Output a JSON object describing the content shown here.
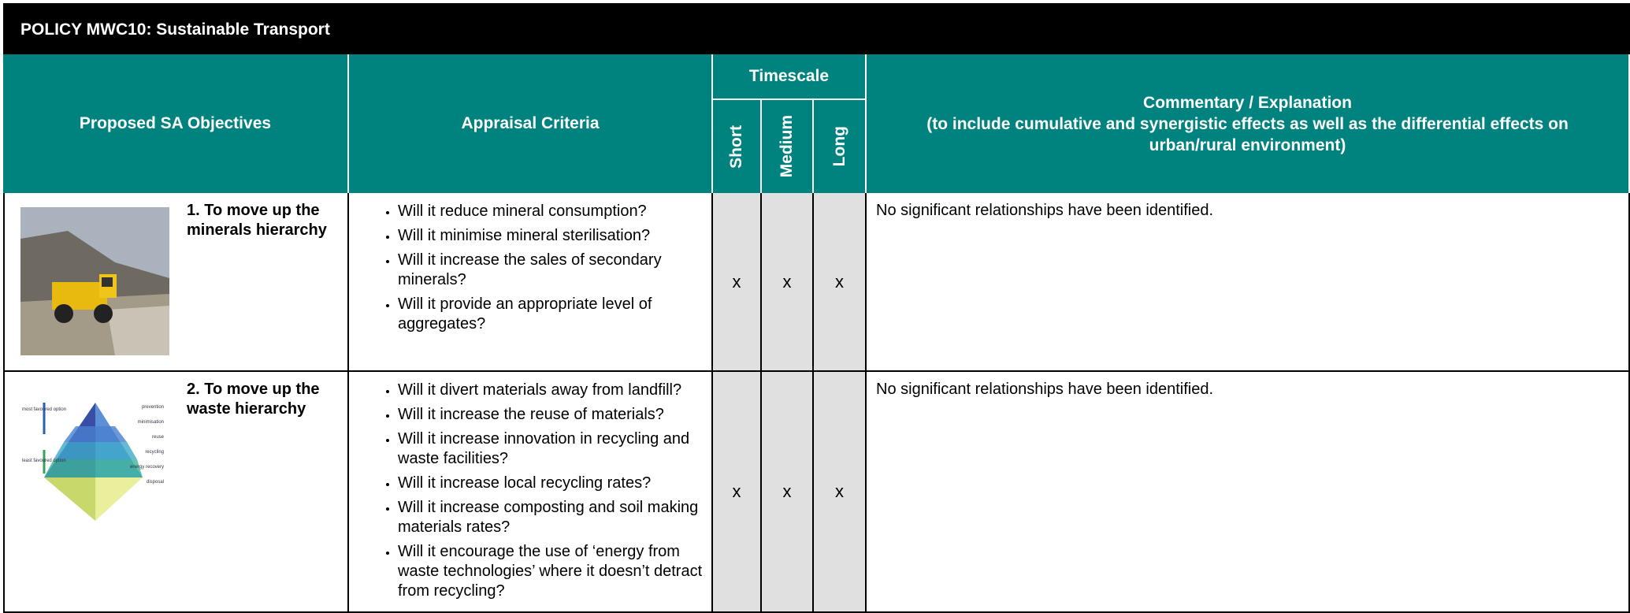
{
  "header": {
    "title": "POLICY MWC10: Sustainable Transport"
  },
  "table": {
    "columns": {
      "objectives": "Proposed SA Objectives",
      "criteria": "Appraisal Criteria",
      "timescale": "Timescale",
      "short": "Short",
      "medium": "Medium",
      "long": "Long",
      "commentary": "Commentary / Explanation",
      "commentary_note": "(to include cumulative and synergistic effects as well as the differential effects on urban/rural environment)"
    },
    "rows": [
      {
        "objective": "1. To move up the minerals hierarchy",
        "criteria": [
          "Will it reduce mineral consumption?",
          "Will it minimise mineral sterilisation?",
          "Will it increase the sales of secondary minerals?",
          "Will it provide an appropriate level of aggregates?"
        ],
        "short": "x",
        "medium": "x",
        "long": "x",
        "commentary": "No significant relationships have been identified."
      },
      {
        "objective": "2. To move up the waste hierarchy",
        "criteria": [
          "Will it divert materials away from landfill?",
          "Will it increase the reuse of materials?",
          "Will it increase innovation in recycling and waste facilities?",
          "Will it increase local recycling rates?",
          "Will it increase composting and soil making materials rates?",
          "Will it encourage the use of ‘energy from waste technologies’ where it doesn’t detract from recycling?"
        ],
        "short": "x",
        "medium": "x",
        "long": "x",
        "commentary": "No significant relationships have been identified.",
        "image_labels": {
          "levels": [
            "prevention",
            "minimisation",
            "reuse",
            "recycling",
            "energy recovery",
            "disposal"
          ],
          "top": "most favoured option",
          "bottom": "least favoured option"
        }
      }
    ]
  }
}
